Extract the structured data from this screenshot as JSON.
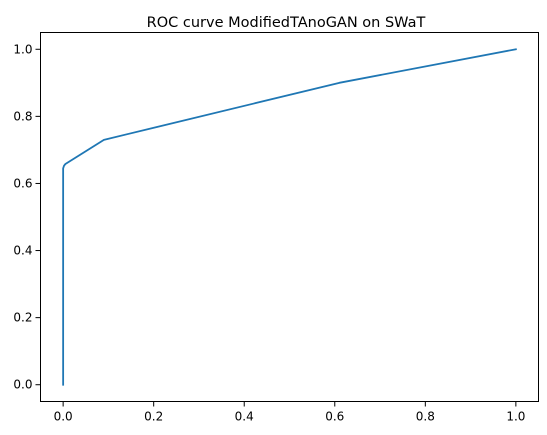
{
  "chart_data": {
    "type": "line",
    "title": "ROC curve ModifiedTAnoGAN on SWaT",
    "xlabel": "",
    "ylabel": "",
    "xlim": [
      -0.05,
      1.05
    ],
    "ylim": [
      -0.05,
      1.05
    ],
    "xticks": [
      0.0,
      0.2,
      0.4,
      0.6,
      0.8,
      1.0
    ],
    "xtick_labels": [
      "0.0",
      "0.2",
      "0.4",
      "0.6",
      "0.8",
      "1.0"
    ],
    "yticks": [
      0.0,
      0.2,
      0.4,
      0.6,
      0.8,
      1.0
    ],
    "ytick_labels": [
      "0.0",
      "0.2",
      "0.4",
      "0.6",
      "0.8",
      "1.0"
    ],
    "grid": false,
    "legend": "none",
    "series": [
      {
        "color": "#1f77b4",
        "x": [
          0.0,
          0.0,
          0.0,
          0.002,
          0.005,
          0.09,
          0.61,
          1.0
        ],
        "y": [
          0.0,
          0.6,
          0.645,
          0.653,
          0.658,
          0.73,
          0.9,
          1.0
        ]
      }
    ]
  }
}
